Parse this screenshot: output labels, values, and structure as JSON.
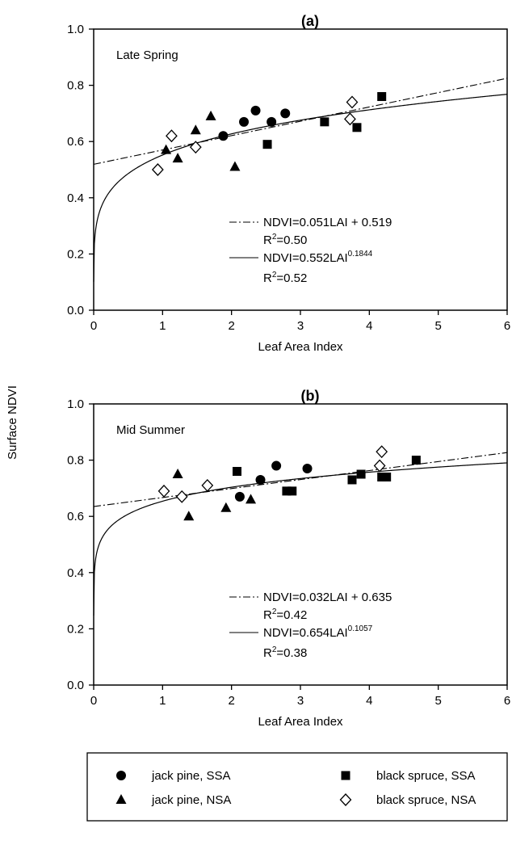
{
  "figure": {
    "shared_ylabel": "Surface NDVI"
  },
  "chart_data": [
    {
      "type": "scatter",
      "title": "(a)",
      "subtitle": "Late Spring",
      "xlabel": "Leaf Area Index",
      "ylabel": "Surface NDVI",
      "xlim": [
        0,
        6
      ],
      "ylim": [
        0,
        1.0
      ],
      "xticks": [
        "0",
        "1",
        "2",
        "3",
        "4",
        "5",
        "6"
      ],
      "yticks": [
        "0.0",
        "0.2",
        "0.4",
        "0.6",
        "0.8",
        "1.0"
      ],
      "grid": false,
      "series": [
        {
          "name": "jack pine, SSA",
          "marker": "circle",
          "x": [
            1.88,
            2.18,
            2.35,
            2.58,
            2.78
          ],
          "y": [
            0.62,
            0.67,
            0.71,
            0.67,
            0.7
          ]
        },
        {
          "name": "jack pine, NSA",
          "marker": "triangle",
          "x": [
            1.05,
            1.22,
            1.48,
            1.7,
            2.05
          ],
          "y": [
            0.57,
            0.54,
            0.64,
            0.69,
            0.51
          ]
        },
        {
          "name": "black spruce, SSA",
          "marker": "square",
          "x": [
            2.52,
            3.35,
            3.82,
            4.18
          ],
          "y": [
            0.59,
            0.67,
            0.65,
            0.76
          ]
        },
        {
          "name": "black spruce, NSA",
          "marker": "diamond",
          "x": [
            0.93,
            1.13,
            1.48,
            3.72,
            3.75
          ],
          "y": [
            0.5,
            0.62,
            0.58,
            0.68,
            0.74
          ]
        }
      ],
      "fits": [
        {
          "name": "linear",
          "style": "dashdot",
          "equation_main": "NDVI=0.051LAI + 0.519",
          "r2_value": "=0.50",
          "a": 0.051,
          "b": 0.519
        },
        {
          "name": "power",
          "style": "solid",
          "equation_main": "NDVI=0.552LAI",
          "equation_exp": "0.1844",
          "r2_value": "=0.52",
          "a": 0.552,
          "p": 0.1844
        }
      ]
    },
    {
      "type": "scatter",
      "title": "(b)",
      "subtitle": "Mid Summer",
      "xlabel": "Leaf Area Index",
      "ylabel": "Surface NDVI",
      "xlim": [
        0,
        6
      ],
      "ylim": [
        0,
        1.0
      ],
      "xticks": [
        "0",
        "1",
        "2",
        "3",
        "4",
        "5",
        "6"
      ],
      "yticks": [
        "0.0",
        "0.2",
        "0.4",
        "0.6",
        "0.8",
        "1.0"
      ],
      "grid": false,
      "series": [
        {
          "name": "jack pine, SSA",
          "marker": "circle",
          "x": [
            2.12,
            2.42,
            2.65,
            3.1
          ],
          "y": [
            0.67,
            0.73,
            0.78,
            0.77
          ]
        },
        {
          "name": "jack pine, NSA",
          "marker": "triangle",
          "x": [
            1.22,
            1.38,
            1.92,
            2.28
          ],
          "y": [
            0.75,
            0.6,
            0.63,
            0.66
          ]
        },
        {
          "name": "black spruce, SSA",
          "marker": "square",
          "x": [
            2.08,
            2.8,
            2.88,
            3.75,
            3.88,
            4.18,
            4.25,
            4.68
          ],
          "y": [
            0.76,
            0.69,
            0.69,
            0.73,
            0.75,
            0.74,
            0.74,
            0.8
          ]
        },
        {
          "name": "black spruce, NSA",
          "marker": "diamond",
          "x": [
            1.02,
            1.28,
            1.65,
            4.15,
            4.18
          ],
          "y": [
            0.69,
            0.67,
            0.71,
            0.78,
            0.83
          ]
        }
      ],
      "fits": [
        {
          "name": "linear",
          "style": "dashdot",
          "equation_main": "NDVI=0.032LAI + 0.635",
          "r2_value": "=0.42",
          "a": 0.032,
          "b": 0.635
        },
        {
          "name": "power",
          "style": "solid",
          "equation_main": "NDVI=0.654LAI",
          "equation_exp": "0.1057",
          "r2_value": "=0.38",
          "a": 0.654,
          "p": 0.1057
        }
      ]
    }
  ],
  "legend": {
    "placement": "bottom",
    "items": [
      {
        "label": "jack pine, SSA",
        "marker": "circle"
      },
      {
        "label": "black spruce, SSA",
        "marker": "square"
      },
      {
        "label": "jack pine, NSA",
        "marker": "triangle"
      },
      {
        "label": "black spruce, NSA",
        "marker": "diamond"
      }
    ]
  }
}
